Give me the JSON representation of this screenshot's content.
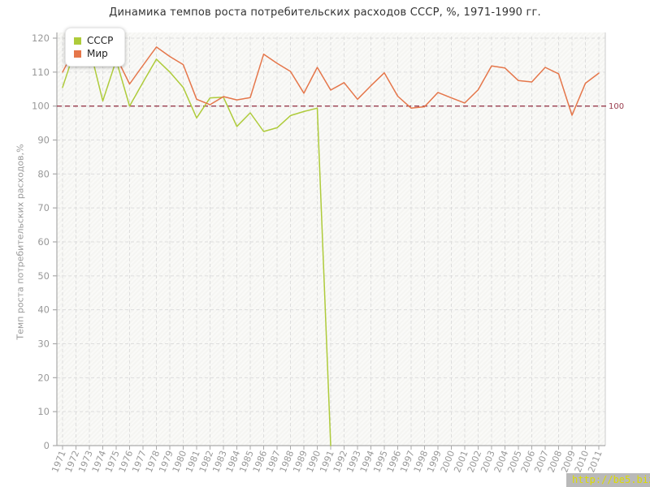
{
  "title": "Динамика темпов роста потребительских расходов СССР, %, 1971-1990 гг.",
  "legend": {
    "items": [
      {
        "label": "СССР",
        "color": "#aecb3a"
      },
      {
        "label": "Мир",
        "color": "#e5764a"
      }
    ]
  },
  "annotation": {
    "label": "100",
    "color": "#993c4d"
  },
  "watermark": {
    "text": "http://be5.biz/"
  },
  "colors": {
    "grid": "#dddddd",
    "axis": "#aaaaaa",
    "tick_text": "#999999",
    "plot_right_border": "#cccccc",
    "reference_line": "#993c4d",
    "series_cccp": "#aecb3a",
    "series_mir": "#e5764a",
    "watermark_bg": "#b9b9b9",
    "watermark_text": "#dcdc00"
  },
  "chart_data": {
    "type": "line",
    "title": "Динамика темпов роста потребительских расходов СССР, %, 1971-1990 гг.",
    "xlabel": "",
    "ylabel": "Темп роста потребительских расходов,%",
    "ylim": [
      0,
      120
    ],
    "yticks": [
      0,
      10,
      20,
      30,
      40,
      50,
      60,
      70,
      80,
      90,
      100,
      110,
      120
    ],
    "grid": true,
    "grid_style": "dashed",
    "legend_position": "top-left",
    "reference_line": {
      "value": 100,
      "label": "100",
      "style": "dashed"
    },
    "categories": [
      1971,
      1972,
      1973,
      1974,
      1975,
      1976,
      1977,
      1978,
      1979,
      1980,
      1981,
      1982,
      1983,
      1984,
      1985,
      1986,
      1987,
      1988,
      1989,
      1990,
      1991,
      1992,
      1993,
      1994,
      1995,
      1996,
      1997,
      1998,
      1999,
      2000,
      2001,
      2002,
      2003,
      2004,
      2005,
      2006,
      2007,
      2008,
      2009,
      2010,
      2011
    ],
    "series": [
      {
        "name": "СССР",
        "color": "#aecb3a",
        "values": [
          105.5,
          117.5,
          117.5,
          101.5,
          113.5,
          100,
          107,
          113.8,
          110,
          105.5,
          96.5,
          102.4,
          102.6,
          94,
          98,
          92.5,
          93.6,
          97.2,
          98.4,
          99.4,
          0,
          null,
          null,
          null,
          null,
          null,
          null,
          null,
          null,
          null,
          null,
          null,
          null,
          null,
          null,
          null,
          null,
          null,
          null,
          null,
          null
        ]
      },
      {
        "name": "Мир",
        "color": "#e5764a",
        "values": [
          110,
          117.5,
          115,
          112.5,
          114.5,
          106.5,
          112,
          117.4,
          114.6,
          112.2,
          102,
          100.4,
          102.8,
          101.8,
          102.5,
          115.3,
          112.6,
          110.2,
          103.8,
          111.4,
          104.7,
          106.9,
          102,
          106,
          109.8,
          102.9,
          99.4,
          99.8,
          104,
          102.4,
          100.9,
          104.8,
          111.8,
          111.2,
          107.5,
          107.1,
          111.4,
          109.5,
          97.3,
          106.7,
          109.7
        ]
      }
    ]
  }
}
